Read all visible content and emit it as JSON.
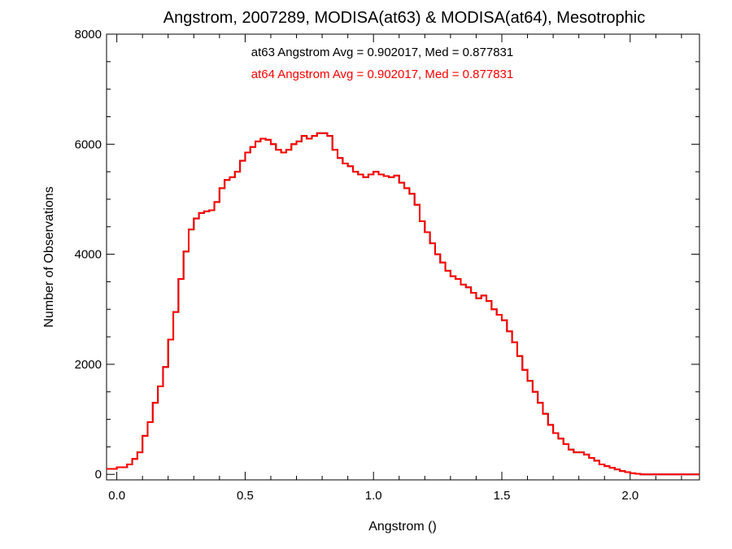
{
  "chart_data": {
    "type": "line",
    "title": "Angstrom, 2007289, MODISA(at63) & MODISA(at64), Mesotrophic",
    "xlabel": "Angstrom ()",
    "ylabel": "Number of Observations",
    "xlim": [
      -0.04,
      2.27
    ],
    "ylim": [
      -100,
      8000
    ],
    "grid": false,
    "x_ticks": [
      0.0,
      0.5,
      1.0,
      1.5,
      2.0
    ],
    "x_tick_labels": [
      "0.0",
      "0.5",
      "1.0",
      "1.5",
      "2.0"
    ],
    "y_ticks": [
      0,
      2000,
      4000,
      6000,
      8000
    ],
    "y_tick_labels": [
      "0",
      "2000",
      "4000",
      "6000",
      "8000"
    ],
    "annotations": [
      {
        "text": "at63 Angstrom Avg = 0.902017, Med = 0.877831",
        "color": "#000000"
      },
      {
        "text": "at64 Angstrom Avg = 0.902017, Med = 0.877831",
        "color": "#ff0000"
      }
    ],
    "series": [
      {
        "color": "#000000",
        "step": true,
        "x": [
          -0.04,
          0.0,
          0.04,
          0.06,
          0.08,
          0.1,
          0.12,
          0.14,
          0.16,
          0.18,
          0.2,
          0.22,
          0.24,
          0.26,
          0.28,
          0.3,
          0.32,
          0.34,
          0.36,
          0.38,
          0.4,
          0.42,
          0.44,
          0.46,
          0.48,
          0.5,
          0.52,
          0.54,
          0.56,
          0.58,
          0.6,
          0.62,
          0.64,
          0.66,
          0.68,
          0.7,
          0.72,
          0.74,
          0.76,
          0.78,
          0.8,
          0.82,
          0.84,
          0.86,
          0.88,
          0.9,
          0.92,
          0.94,
          0.96,
          0.98,
          1.0,
          1.02,
          1.04,
          1.06,
          1.08,
          1.1,
          1.12,
          1.14,
          1.16,
          1.18,
          1.2,
          1.22,
          1.24,
          1.26,
          1.28,
          1.3,
          1.32,
          1.34,
          1.36,
          1.38,
          1.4,
          1.42,
          1.44,
          1.46,
          1.48,
          1.5,
          1.52,
          1.54,
          1.56,
          1.58,
          1.6,
          1.62,
          1.64,
          1.66,
          1.68,
          1.7,
          1.72,
          1.74,
          1.76,
          1.78,
          1.8,
          1.82,
          1.84,
          1.86,
          1.88,
          1.9,
          1.92,
          1.94,
          1.96,
          1.98,
          2.0,
          2.02,
          2.04,
          2.06,
          2.08,
          2.1,
          2.12,
          2.14,
          2.16,
          2.18,
          2.2,
          2.22,
          2.27
        ],
        "y": [
          100,
          130,
          180,
          280,
          400,
          700,
          950,
          1300,
          1600,
          1950,
          2450,
          2950,
          3550,
          4050,
          4450,
          4650,
          4750,
          4780,
          4800,
          4950,
          5200,
          5350,
          5400,
          5500,
          5700,
          5850,
          5950,
          6050,
          6100,
          6080,
          6000,
          5900,
          5850,
          5900,
          6000,
          6050,
          6150,
          6100,
          6150,
          6200,
          6200,
          6150,
          5900,
          5750,
          5650,
          5600,
          5500,
          5450,
          5400,
          5450,
          5500,
          5450,
          5420,
          5400,
          5430,
          5300,
          5200,
          5100,
          4900,
          4600,
          4400,
          4200,
          4000,
          3850,
          3700,
          3600,
          3550,
          3450,
          3400,
          3300,
          3200,
          3250,
          3150,
          3000,
          2900,
          2800,
          2600,
          2400,
          2150,
          1900,
          1700,
          1500,
          1300,
          1100,
          900,
          750,
          650,
          550,
          450,
          400,
          400,
          360,
          300,
          250,
          180,
          150,
          120,
          90,
          60,
          40,
          20,
          10,
          0,
          0,
          0,
          0,
          0,
          0,
          0,
          0,
          0,
          0,
          0
        ]
      },
      {
        "color": "#ff0000",
        "step": true,
        "x": [
          -0.04,
          0.0,
          0.04,
          0.06,
          0.08,
          0.1,
          0.12,
          0.14,
          0.16,
          0.18,
          0.2,
          0.22,
          0.24,
          0.26,
          0.28,
          0.3,
          0.32,
          0.34,
          0.36,
          0.38,
          0.4,
          0.42,
          0.44,
          0.46,
          0.48,
          0.5,
          0.52,
          0.54,
          0.56,
          0.58,
          0.6,
          0.62,
          0.64,
          0.66,
          0.68,
          0.7,
          0.72,
          0.74,
          0.76,
          0.78,
          0.8,
          0.82,
          0.84,
          0.86,
          0.88,
          0.9,
          0.92,
          0.94,
          0.96,
          0.98,
          1.0,
          1.02,
          1.04,
          1.06,
          1.08,
          1.1,
          1.12,
          1.14,
          1.16,
          1.18,
          1.2,
          1.22,
          1.24,
          1.26,
          1.28,
          1.3,
          1.32,
          1.34,
          1.36,
          1.38,
          1.4,
          1.42,
          1.44,
          1.46,
          1.48,
          1.5,
          1.52,
          1.54,
          1.56,
          1.58,
          1.6,
          1.62,
          1.64,
          1.66,
          1.68,
          1.7,
          1.72,
          1.74,
          1.76,
          1.78,
          1.8,
          1.82,
          1.84,
          1.86,
          1.88,
          1.9,
          1.92,
          1.94,
          1.96,
          1.98,
          2.0,
          2.02,
          2.04,
          2.06,
          2.08,
          2.1,
          2.12,
          2.14,
          2.16,
          2.18,
          2.2,
          2.22,
          2.27
        ],
        "y": [
          100,
          130,
          180,
          280,
          400,
          700,
          950,
          1300,
          1600,
          1950,
          2450,
          2950,
          3550,
          4050,
          4450,
          4650,
          4750,
          4780,
          4800,
          4950,
          5200,
          5350,
          5400,
          5500,
          5700,
          5850,
          5950,
          6050,
          6100,
          6080,
          6000,
          5900,
          5850,
          5900,
          6000,
          6050,
          6150,
          6100,
          6150,
          6200,
          6200,
          6150,
          5900,
          5750,
          5650,
          5600,
          5500,
          5450,
          5400,
          5450,
          5500,
          5450,
          5420,
          5400,
          5430,
          5300,
          5200,
          5100,
          4900,
          4600,
          4400,
          4200,
          4000,
          3850,
          3700,
          3600,
          3550,
          3450,
          3400,
          3300,
          3200,
          3250,
          3150,
          3000,
          2900,
          2800,
          2600,
          2400,
          2150,
          1900,
          1700,
          1500,
          1300,
          1100,
          900,
          750,
          650,
          550,
          450,
          400,
          400,
          360,
          300,
          250,
          180,
          150,
          120,
          90,
          60,
          40,
          20,
          10,
          0,
          0,
          0,
          0,
          0,
          0,
          0,
          0,
          0,
          0,
          0
        ]
      }
    ]
  }
}
